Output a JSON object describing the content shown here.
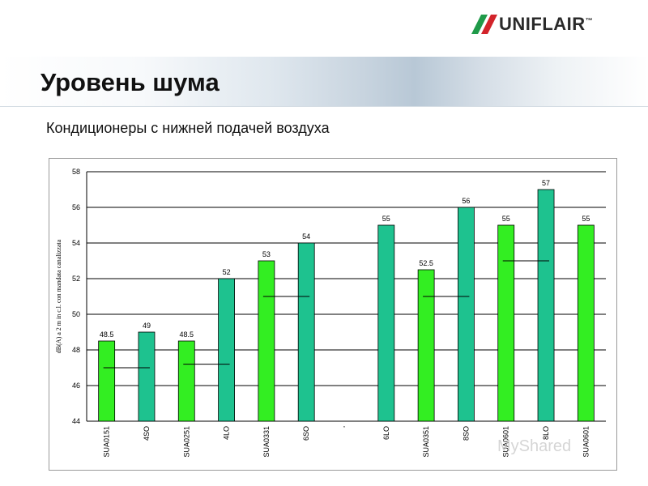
{
  "header": {
    "brand": "UNIFLAIR",
    "brand_mark": "™",
    "title": "Уровень шума",
    "subtitle": "Кондиционеры с нижней подачей воздуха"
  },
  "watermark": "MyShared",
  "colors": {
    "bright_green": "#33ee22",
    "teal_green": "#1ec28f",
    "logo_red": "#d2232a",
    "logo_green": "#1f9a49"
  },
  "chart_data": {
    "type": "bar",
    "ylabel": "dB(A) a 2 m in c.l. con mandata canalizzata",
    "ylim": [
      44,
      58
    ],
    "yticks": [
      44,
      46,
      48,
      50,
      52,
      54,
      56,
      58
    ],
    "grid": true,
    "categories": [
      "SUA0151",
      "4SO",
      "SUA0251",
      "4LO",
      "SUA0331",
      "6SO",
      "'",
      "6LO",
      "SUA0351",
      "8SO",
      "SUA0601",
      "8LO",
      "SUA0601"
    ],
    "values": [
      48.5,
      49,
      48.5,
      52,
      53,
      54,
      null,
      55,
      52.5,
      56,
      55,
      57,
      55
    ],
    "labels": [
      "48.5",
      "49",
      "48.5",
      "52",
      "53",
      "54",
      "",
      "55",
      "52.5",
      "56",
      "55",
      "57",
      "55"
    ],
    "colors": [
      "#33ee22",
      "#1ec28f",
      "#33ee22",
      "#1ec28f",
      "#33ee22",
      "#1ec28f",
      null,
      "#1ec28f",
      "#33ee22",
      "#1ec28f",
      "#33ee22",
      "#1ec28f",
      "#33ee22"
    ],
    "reference_lines": [
      {
        "between": [
          0,
          1
        ],
        "value": 47
      },
      {
        "between": [
          2,
          3
        ],
        "value": 47.2
      },
      {
        "between": [
          4,
          5
        ],
        "value": 51
      },
      {
        "between": [
          8,
          9
        ],
        "value": 51
      },
      {
        "between": [
          10,
          11
        ],
        "value": 53
      }
    ]
  }
}
